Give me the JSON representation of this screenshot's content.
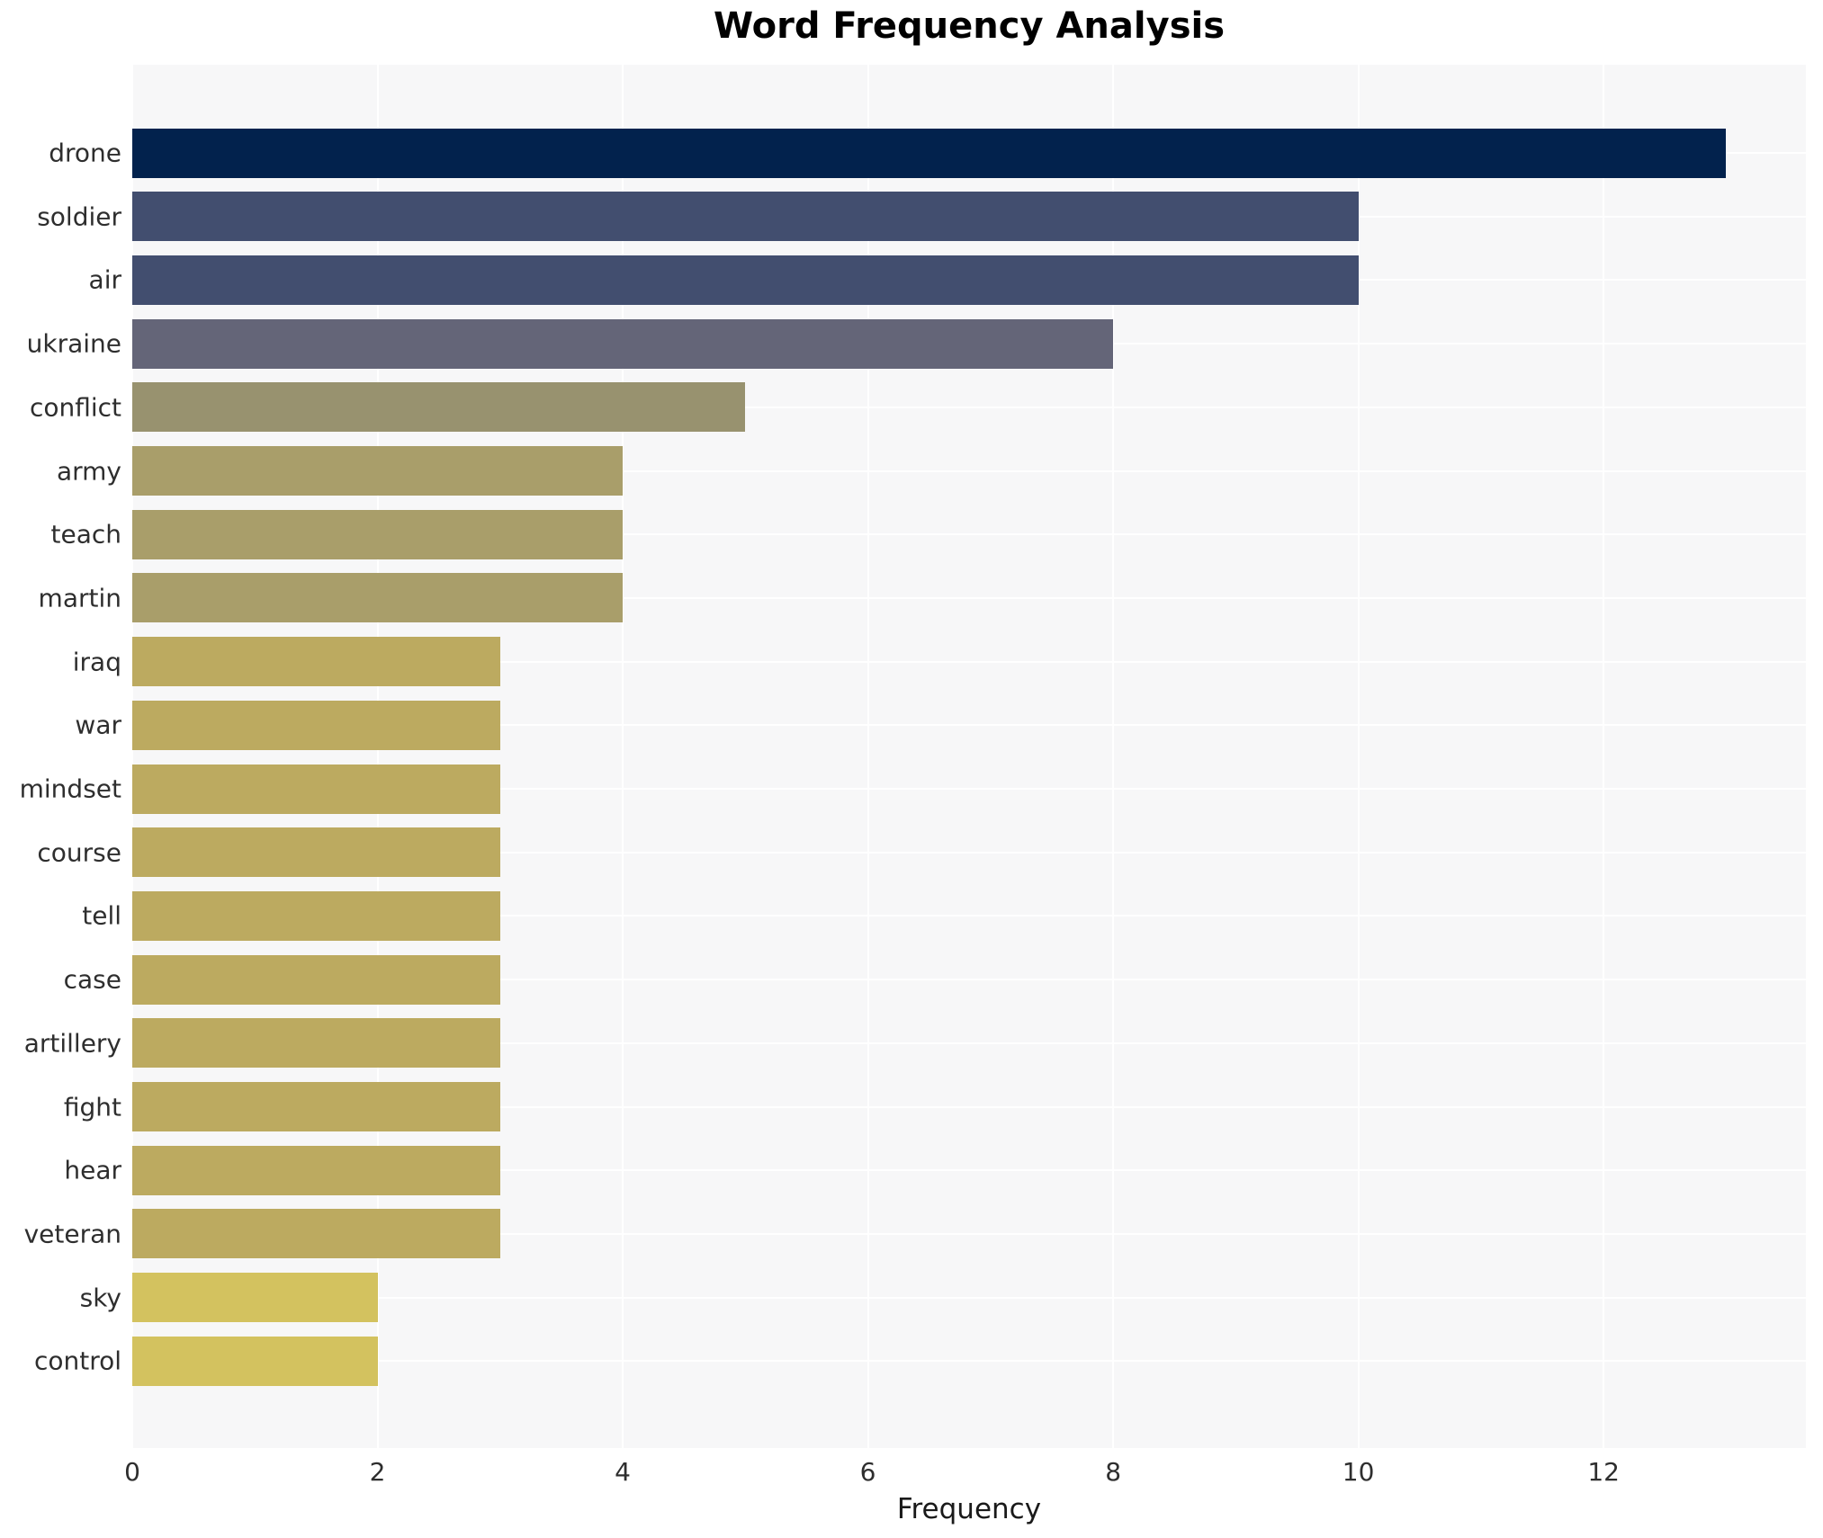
{
  "title": "Word Frequency Analysis",
  "axes": {
    "xlabel": "Frequency",
    "xtick_labels": [
      "0",
      "2",
      "4",
      "6",
      "8",
      "10",
      "12"
    ]
  },
  "colors": {
    "plot_background": "#f7f7f8",
    "grid": "#ffffff",
    "title_text": "#000000",
    "tick_text": "#2e2e2e"
  },
  "chart_data": {
    "type": "bar",
    "orientation": "horizontal",
    "title": "Word Frequency Analysis",
    "xlabel": "Frequency",
    "ylabel": "",
    "categories": [
      "drone",
      "soldier",
      "air",
      "ukraine",
      "conflict",
      "army",
      "teach",
      "martin",
      "iraq",
      "war",
      "mindset",
      "course",
      "tell",
      "case",
      "artillery",
      "fight",
      "hear",
      "veteran",
      "sky",
      "control"
    ],
    "values": [
      13,
      10,
      10,
      8,
      5,
      4,
      4,
      4,
      3,
      3,
      3,
      3,
      3,
      3,
      3,
      3,
      3,
      3,
      2,
      2
    ],
    "bar_colors": [
      "#02224d",
      "#424e6f",
      "#424e6f",
      "#646578",
      "#98926f",
      "#a99e6a",
      "#a99e6a",
      "#a99e6a",
      "#bcaa60",
      "#bcaa60",
      "#bcaa60",
      "#bcaa60",
      "#bcaa60",
      "#bcaa60",
      "#bcaa60",
      "#bcaa60",
      "#bcaa60",
      "#bcaa60",
      "#d3c25f",
      "#d3c25f"
    ],
    "xlim": [
      0,
      13.65
    ],
    "xticks": [
      0,
      2,
      4,
      6,
      8,
      10,
      12
    ],
    "grid": true,
    "legend": false
  }
}
